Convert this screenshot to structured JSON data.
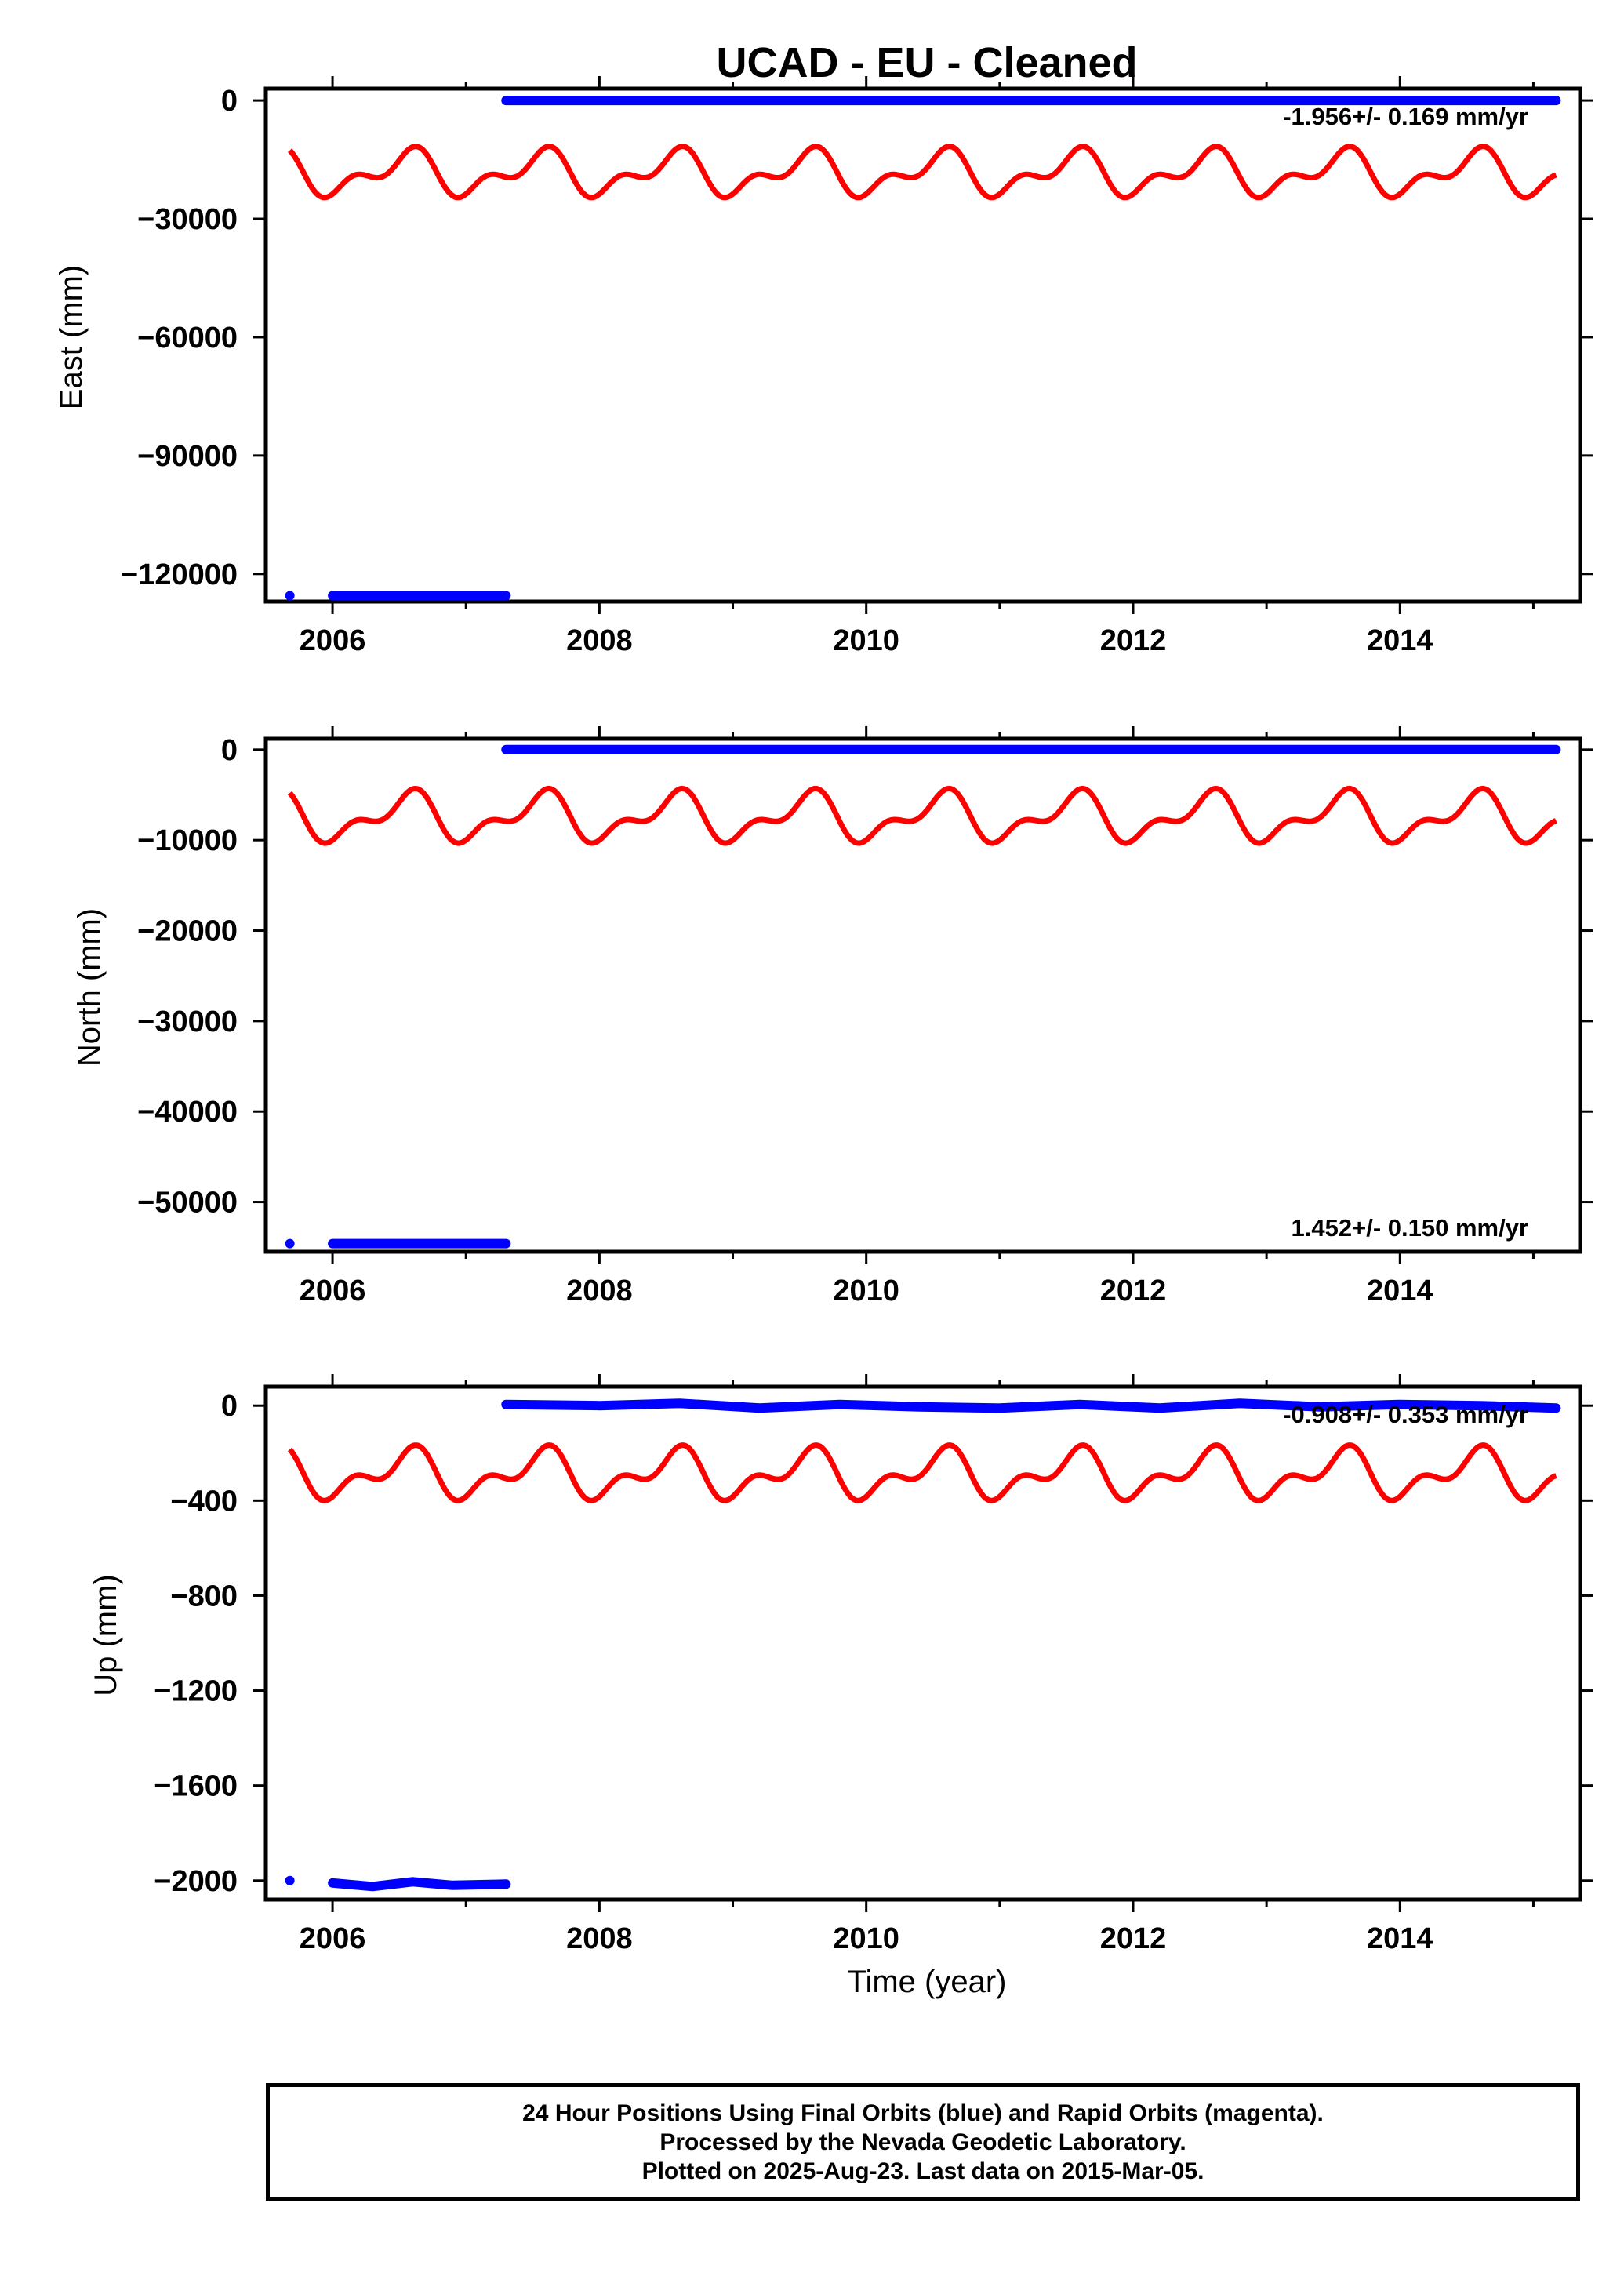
{
  "title": "UCAD  - EU - Cleaned",
  "xlabel": "Time (year)",
  "footer": {
    "line1": "24 Hour Positions Using Final Orbits (blue) and Rapid Orbits (magenta).",
    "line2": "Processed by the Nevada Geodetic Laboratory.",
    "line3": "Plotted on 2025-Aug-23. Last data on 2015-Mar-05."
  },
  "colors": {
    "data": "#0000ff",
    "model": "#ff0000",
    "axes": "#000000"
  },
  "chart_data": [
    {
      "type": "scatter",
      "ylabel": "East (mm)",
      "rate_label": "-1.956+/- 0.169 mm/yr",
      "rate_position": "top-right",
      "xlim": [
        2005.5,
        2015.35
      ],
      "ylim": [
        -127000,
        3000
      ],
      "xticks": [
        2006,
        2008,
        2010,
        2012,
        2014
      ],
      "yticks": [
        0,
        -30000,
        -60000,
        -90000,
        -120000
      ],
      "ytick_labels": [
        "0",
        "−30000",
        "−60000",
        "−90000",
        "−120000"
      ],
      "data_series": [
        {
          "x": [
            2005.68
          ],
          "y": [
            -125500
          ]
        },
        {
          "x": [
            2006.0,
            2007.3
          ],
          "y": [
            -125500,
            -125500
          ]
        },
        {
          "x": [
            2007.3,
            2015.17
          ],
          "y": [
            0,
            0
          ]
        }
      ],
      "model": {
        "x_start": 2005.68,
        "x_end": 2015.17,
        "mean": -18500,
        "a1": 4500,
        "a2": 3000,
        "phase1": 0.55,
        "phase2": 0.65
      }
    },
    {
      "type": "scatter",
      "ylabel": "North (mm)",
      "rate_label": "1.452+/- 0.150 mm/yr",
      "rate_position": "bottom-right",
      "xlim": [
        2005.5,
        2015.35
      ],
      "ylim": [
        -55500,
        1200
      ],
      "xticks": [
        2006,
        2008,
        2010,
        2012,
        2014
      ],
      "yticks": [
        0,
        -10000,
        -20000,
        -30000,
        -40000,
        -50000
      ],
      "ytick_labels": [
        "0",
        "−10000",
        "−20000",
        "−30000",
        "−40000",
        "−50000"
      ],
      "data_series": [
        {
          "x": [
            2005.68
          ],
          "y": [
            -54600
          ]
        },
        {
          "x": [
            2006.0,
            2007.3
          ],
          "y": [
            -54600,
            -54600
          ]
        },
        {
          "x": [
            2007.3,
            2015.17
          ],
          "y": [
            0,
            0
          ]
        }
      ],
      "model": {
        "x_start": 2005.68,
        "x_end": 2015.17,
        "mean": -7500,
        "a1": 2200,
        "a2": 1300,
        "phase1": 0.55,
        "phase2": 0.65
      }
    },
    {
      "type": "scatter",
      "ylabel": "Up (mm)",
      "rate_label": "-0.908+/- 0.353 mm/yr",
      "rate_position": "top-right",
      "xlim": [
        2005.5,
        2015.35
      ],
      "ylim": [
        -2080,
        80
      ],
      "xticks": [
        2006,
        2008,
        2010,
        2012,
        2014
      ],
      "yticks": [
        0,
        -400,
        -800,
        -1200,
        -1600,
        -2000
      ],
      "ytick_labels": [
        "0",
        "−400",
        "−800",
        "−1200",
        "−1600",
        "−2000"
      ],
      "data_series": [
        {
          "x": [
            2005.68
          ],
          "y": [
            -2000
          ]
        },
        {
          "x": [
            2006.0,
            2006.3,
            2006.6,
            2006.9,
            2007.3
          ],
          "y": [
            -2010,
            -2025,
            -2005,
            -2020,
            -2015
          ]
        },
        {
          "x": [
            2007.3,
            2008.0,
            2008.6,
            2009.2,
            2009.8,
            2010.4,
            2011.0,
            2011.6,
            2012.2,
            2012.8,
            2013.4,
            2014.0,
            2014.6,
            2015.17
          ],
          "y": [
            5,
            0,
            10,
            -10,
            5,
            -5,
            -10,
            5,
            -10,
            10,
            -5,
            5,
            0,
            -10
          ]
        }
      ],
      "model": {
        "x_start": 2005.68,
        "x_end": 2015.17,
        "mean": -290,
        "a1": 80,
        "a2": 55,
        "phase1": 0.55,
        "phase2": 0.65
      }
    }
  ]
}
